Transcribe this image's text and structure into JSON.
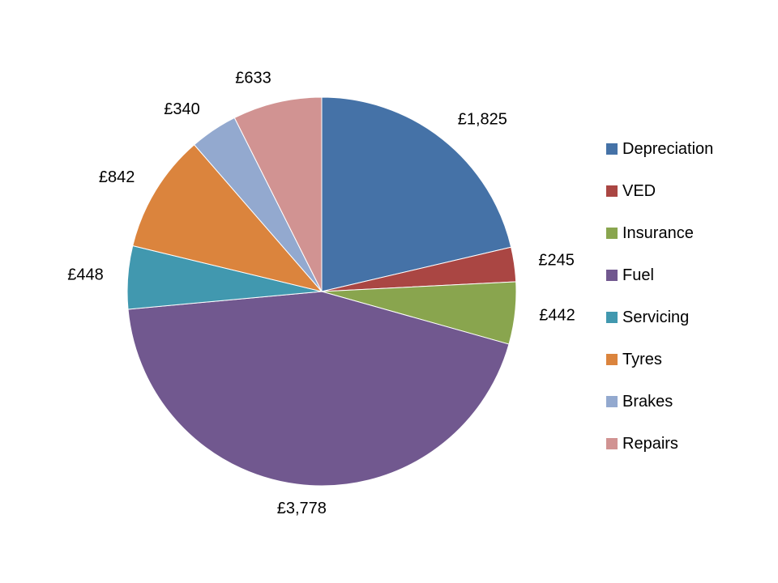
{
  "chart_data": {
    "type": "pie",
    "start_angle_deg": 0,
    "direction": "clockwise",
    "legend_position": "right",
    "slices": [
      {
        "name": "Depreciation",
        "value": 1825,
        "label": "£1,825",
        "color": "#4572A7"
      },
      {
        "name": "VED",
        "value": 245,
        "label": "£245",
        "color": "#AA4643"
      },
      {
        "name": "Insurance",
        "value": 442,
        "label": "£442",
        "color": "#89A54E"
      },
      {
        "name": "Fuel",
        "value": 3778,
        "label": "£3,778",
        "color": "#71588F"
      },
      {
        "name": "Servicing",
        "value": 448,
        "label": "£448",
        "color": "#4198AF"
      },
      {
        "name": "Tyres",
        "value": 842,
        "label": "£842",
        "color": "#DB843D"
      },
      {
        "name": "Brakes",
        "value": 340,
        "label": "£340",
        "color": "#93A9CF"
      },
      {
        "name": "Repairs",
        "value": 633,
        "label": "£633",
        "color": "#D19392"
      }
    ]
  }
}
